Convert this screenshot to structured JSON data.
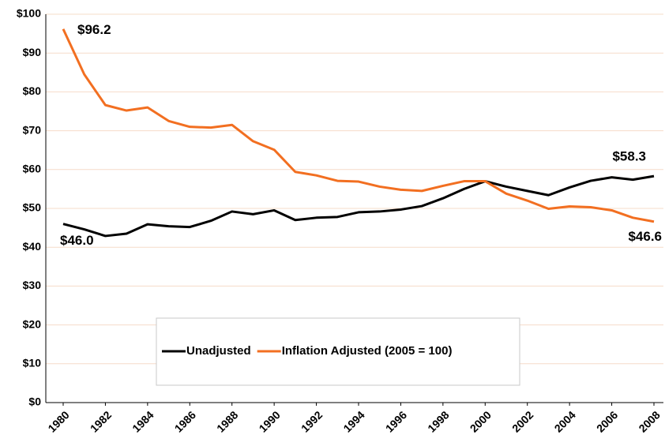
{
  "chart_data": {
    "type": "line",
    "x": [
      1980,
      1981,
      1982,
      1983,
      1984,
      1985,
      1986,
      1987,
      1988,
      1989,
      1990,
      1991,
      1992,
      1993,
      1994,
      1995,
      1996,
      1997,
      1998,
      1999,
      2000,
      2001,
      2002,
      2003,
      2004,
      2005,
      2006,
      2007,
      2008
    ],
    "series": [
      {
        "name": "Unadjusted",
        "color": "#000000",
        "values": [
          46.0,
          44.6,
          42.9,
          43.5,
          45.9,
          45.4,
          45.2,
          46.8,
          49.2,
          48.5,
          49.5,
          47.0,
          47.6,
          47.8,
          49.0,
          49.2,
          49.7,
          50.6,
          52.6,
          55.0,
          57.0,
          55.6,
          54.5,
          53.4,
          55.4,
          57.1,
          58.0,
          57.4,
          58.3
        ],
        "value_labels": [
          "$46.0",
          null,
          null,
          null,
          null,
          null,
          null,
          null,
          null,
          null,
          null,
          null,
          null,
          null,
          null,
          null,
          null,
          null,
          null,
          null,
          null,
          null,
          null,
          null,
          null,
          null,
          null,
          null,
          "$58.3"
        ]
      },
      {
        "name": "Inflation Adjusted (2005 = 100)",
        "color": "#f26f21",
        "values": [
          96.2,
          84.5,
          76.6,
          75.2,
          76.0,
          72.5,
          71.0,
          70.8,
          71.5,
          67.3,
          65.1,
          59.4,
          58.5,
          57.1,
          56.9,
          55.6,
          54.8,
          54.5,
          55.8,
          57.0,
          57.0,
          53.8,
          52.0,
          49.9,
          50.5,
          50.3,
          49.5,
          47.6,
          46.6
        ],
        "value_labels": [
          "$96.2",
          null,
          null,
          null,
          null,
          null,
          null,
          null,
          null,
          null,
          null,
          null,
          null,
          null,
          null,
          null,
          null,
          null,
          null,
          null,
          null,
          null,
          null,
          null,
          null,
          null,
          null,
          null,
          "$46.6"
        ]
      }
    ],
    "xlim": [
      1980,
      2008
    ],
    "xticks": [
      1980,
      1982,
      1984,
      1986,
      1988,
      1990,
      1992,
      1994,
      1996,
      1998,
      2000,
      2002,
      2004,
      2006,
      2008
    ],
    "ylim": [
      0,
      100
    ],
    "yticks": [
      {
        "value": 0,
        "label": "$0"
      },
      {
        "value": 10,
        "label": "$10"
      },
      {
        "value": 20,
        "label": "$20"
      },
      {
        "value": 30,
        "label": "$30"
      },
      {
        "value": 40,
        "label": "$40"
      },
      {
        "value": 50,
        "label": "$50"
      },
      {
        "value": 60,
        "label": "$60"
      },
      {
        "value": 70,
        "label": "$70"
      },
      {
        "value": 80,
        "label": "$80"
      },
      {
        "value": 90,
        "label": "$90"
      },
      {
        "value": 100,
        "label": "$100"
      }
    ],
    "grid": true,
    "legend": "lower center"
  }
}
